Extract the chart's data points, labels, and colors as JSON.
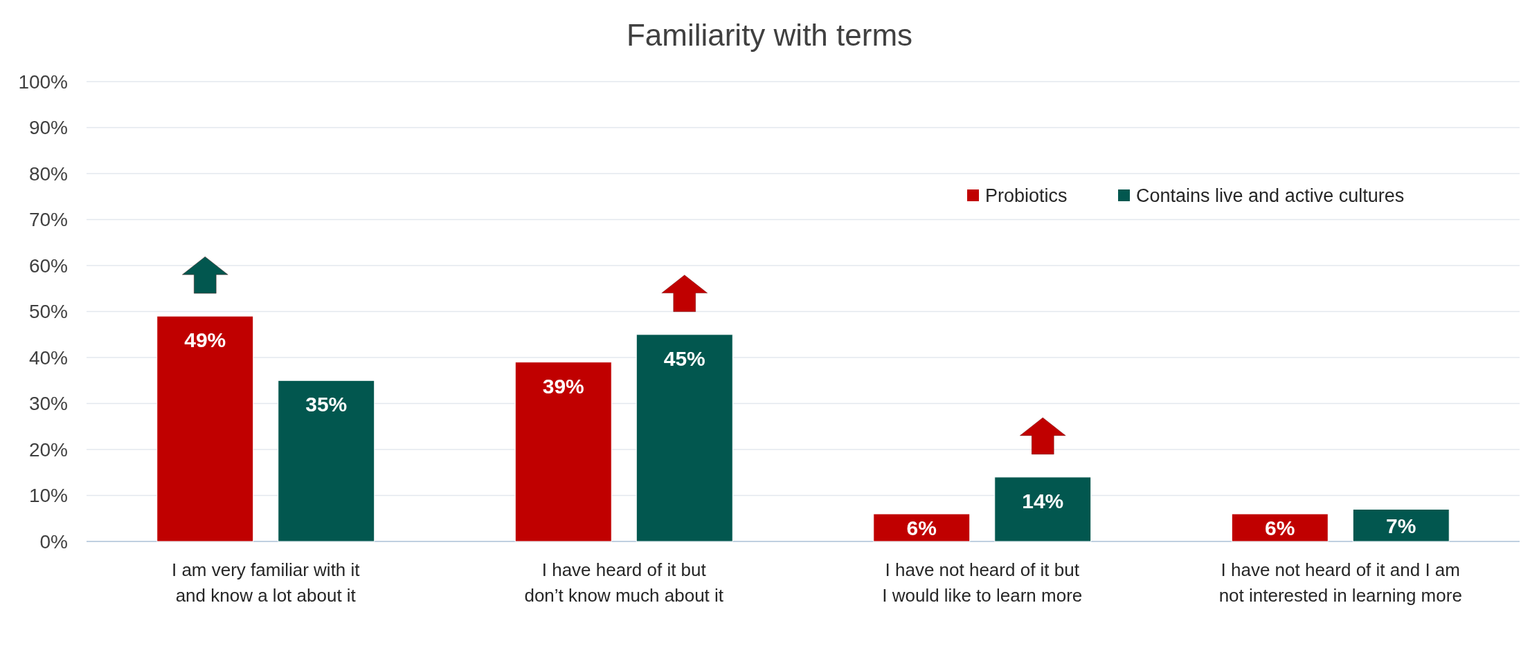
{
  "chart_data": {
    "type": "bar",
    "title": "Familiarity with terms",
    "categories": [
      "I am very familiar with it\nand know a lot about it",
      "I have heard of it but\ndon’t know much about it",
      "I have not heard of it but\nI would like to learn more",
      "I have not heard of it and I am\nnot interested in learning more"
    ],
    "series": [
      {
        "name": "Probiotics",
        "color": "#c00000",
        "values": [
          49,
          39,
          6,
          6
        ],
        "value_labels": [
          "49%",
          "39%",
          "6%",
          "6%"
        ]
      },
      {
        "name": "Contains live and active cultures",
        "color": "#02574f",
        "values": [
          35,
          45,
          14,
          7
        ],
        "value_labels": [
          "35%",
          "45%",
          "14%",
          "7%"
        ]
      }
    ],
    "ylim": [
      0,
      100
    ],
    "yticks": [
      {
        "value": 0,
        "label": "0%"
      },
      {
        "value": 10,
        "label": "10%"
      },
      {
        "value": 20,
        "label": "20%"
      },
      {
        "value": 30,
        "label": "30%"
      },
      {
        "value": 40,
        "label": "40%"
      },
      {
        "value": 50,
        "label": "50%"
      },
      {
        "value": 60,
        "label": "60%"
      },
      {
        "value": 70,
        "label": "70%"
      },
      {
        "value": 80,
        "label": "80%"
      },
      {
        "value": 90,
        "label": "90%"
      },
      {
        "value": 100,
        "label": "100%"
      }
    ],
    "grid": "y",
    "legend": "top right"
  }
}
